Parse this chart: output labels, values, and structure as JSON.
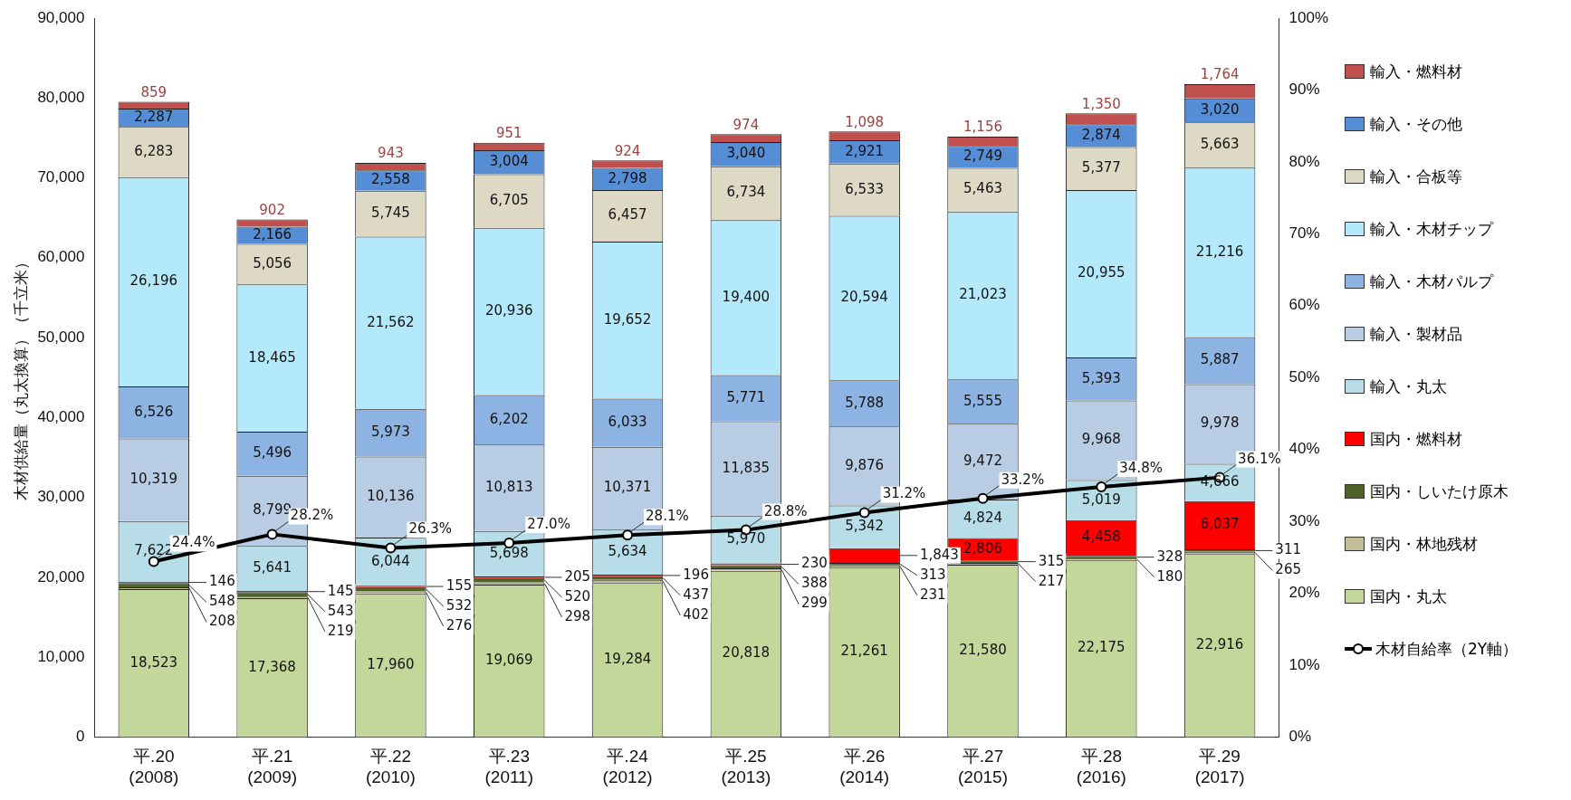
{
  "chart_data": {
    "type": "bar",
    "stacked": true,
    "legend": "right",
    "grid": false,
    "marker": "circle",
    "ylabel": "木材供給量（丸太換算）（千立米）",
    "categories": [
      "平.20 (2008)",
      "平.21 (2009)",
      "平.22 (2010)",
      "平.23 (2011)",
      "平.24 (2012)",
      "平.25 (2013)",
      "平.26 (2014)",
      "平.27 (2015)",
      "平.28 (2016)",
      "平.29 (2017)"
    ],
    "ylim": [
      0,
      90000
    ],
    "yticks": [
      {
        "value": 0,
        "label": "0"
      },
      {
        "value": 10000,
        "label": "10,000"
      },
      {
        "value": 20000,
        "label": "20,000"
      },
      {
        "value": 30000,
        "label": "30,000"
      },
      {
        "value": 40000,
        "label": "40,000"
      },
      {
        "value": 50000,
        "label": "50,000"
      },
      {
        "value": 60000,
        "label": "60,000"
      },
      {
        "value": 70000,
        "label": "70,000"
      },
      {
        "value": 80000,
        "label": "80,000"
      },
      {
        "value": 90000,
        "label": "90,000"
      }
    ],
    "y2lim": [
      0,
      100
    ],
    "y2ticks": [
      {
        "value": 0,
        "label": "0%"
      },
      {
        "value": 10,
        "label": "10%"
      },
      {
        "value": 20,
        "label": "20%"
      },
      {
        "value": 30,
        "label": "30%"
      },
      {
        "value": 40,
        "label": "40%"
      },
      {
        "value": 50,
        "label": "50%"
      },
      {
        "value": 60,
        "label": "60%"
      },
      {
        "value": 70,
        "label": "70%"
      },
      {
        "value": 80,
        "label": "80%"
      },
      {
        "value": 90,
        "label": "90%"
      },
      {
        "value": 100,
        "label": "100%"
      }
    ],
    "series": [
      {
        "name": "国内・丸太",
        "color": "#c4d79b",
        "values": [
          18523,
          17368,
          17960,
          19069,
          19284,
          20818,
          21261,
          21580,
          22175,
          22916
        ],
        "value_labels": [
          "18,523",
          "17,368",
          "17,960",
          "19,069",
          "19,284",
          "20,818",
          "21,261",
          "21,580",
          "22,175",
          "22,916"
        ]
      },
      {
        "name": "国内・林地残材",
        "color": "#c4bd97",
        "values": [
          208,
          219,
          276,
          298,
          402,
          299,
          231,
          217,
          180,
          265
        ],
        "value_labels": [
          "208",
          "219",
          "276",
          "298",
          "402",
          "299",
          "231",
          "217",
          "180",
          "265"
        ]
      },
      {
        "name": "国内・しいたけ原木",
        "color": "#4f6228",
        "values": [
          548,
          543,
          532,
          520,
          437,
          388,
          313,
          315,
          328,
          311
        ],
        "value_labels": [
          "548",
          "543",
          "532",
          "520",
          "437",
          "388",
          "313",
          "315",
          "328",
          "311"
        ]
      },
      {
        "name": "国内・燃料材",
        "color": "#ff0000",
        "values": [
          146,
          145,
          155,
          205,
          196,
          230,
          1843,
          2806,
          4458,
          6037
        ],
        "value_labels": [
          "146",
          "145",
          "155",
          "205",
          "196",
          "230",
          "1,843",
          "2,806",
          "4,458",
          "6,037"
        ]
      },
      {
        "name": "輸入・丸太",
        "color": "#b7dee8",
        "values": [
          7622,
          5641,
          6044,
          5698,
          5634,
          5970,
          5342,
          4824,
          5019,
          4666
        ],
        "value_labels": [
          "7,622",
          "5,641",
          "6,044",
          "5,698",
          "5,634",
          "5,970",
          "5,342",
          "4,824",
          "5,019",
          "4,666"
        ]
      },
      {
        "name": "輸入・製材品",
        "color": "#b8cce4",
        "values": [
          10319,
          8799,
          10136,
          10813,
          10371,
          11835,
          9876,
          9472,
          9968,
          9978
        ],
        "value_labels": [
          "10,319",
          "8,799",
          "10,136",
          "10,813",
          "10,371",
          "11,835",
          "9,876",
          "9,472",
          "9,968",
          "9,978"
        ]
      },
      {
        "name": "輸入・木材パルプ",
        "color": "#8db3e2",
        "values": [
          6526,
          5496,
          5973,
          6202,
          6033,
          5771,
          5788,
          5555,
          5393,
          5887
        ],
        "value_labels": [
          "6,526",
          "5,496",
          "5,973",
          "6,202",
          "6,033",
          "5,771",
          "5,788",
          "5,555",
          "5,393",
          "5,887"
        ]
      },
      {
        "name": "輸入・木材チップ",
        "color": "#b3e9fb",
        "values": [
          26196,
          18465,
          21562,
          20936,
          19652,
          19400,
          20594,
          21023,
          20955,
          21216
        ],
        "value_labels": [
          "26,196",
          "18,465",
          "21,562",
          "20,936",
          "19,652",
          "19,400",
          "20,594",
          "21,023",
          "20,955",
          "21,216"
        ]
      },
      {
        "name": "輸入・合板等",
        "color": "#ddd9c4",
        "values": [
          6283,
          5056,
          5745,
          6705,
          6457,
          6734,
          6533,
          5463,
          5377,
          5663
        ],
        "value_labels": [
          "6,283",
          "5,056",
          "5,745",
          "6,705",
          "6,457",
          "6,734",
          "6,533",
          "5,463",
          "5,377",
          "5,663"
        ]
      },
      {
        "name": "輸入・その他",
        "color": "#558ed5",
        "values": [
          2287,
          2166,
          2558,
          3004,
          2798,
          3040,
          2921,
          2749,
          2874,
          3020
        ],
        "value_labels": [
          "2,287",
          "2,166",
          "2,558",
          "3,004",
          "2,798",
          "3,040",
          "2,921",
          "2,749",
          "2,874",
          "3,020"
        ]
      },
      {
        "name": "輸入・燃料材",
        "color": "#c0504d",
        "values": [
          859,
          902,
          943,
          951,
          924,
          974,
          1098,
          1156,
          1350,
          1764
        ],
        "value_labels": [
          "859",
          "902",
          "943",
          "951",
          "924",
          "974",
          "1,098",
          "1,156",
          "1,350",
          "1,764"
        ]
      },
      {
        "name": "木材自給率（2Y軸）",
        "type": "line",
        "axis": "y2",
        "color": "#000000",
        "values": [
          24.4,
          28.2,
          26.3,
          27.0,
          28.1,
          28.8,
          31.2,
          33.2,
          34.8,
          36.1
        ],
        "value_labels": [
          "24.4%",
          "28.2%",
          "26.3%",
          "27.0%",
          "28.1%",
          "28.8%",
          "31.2%",
          "33.2%",
          "34.8%",
          "36.1%"
        ]
      }
    ]
  }
}
